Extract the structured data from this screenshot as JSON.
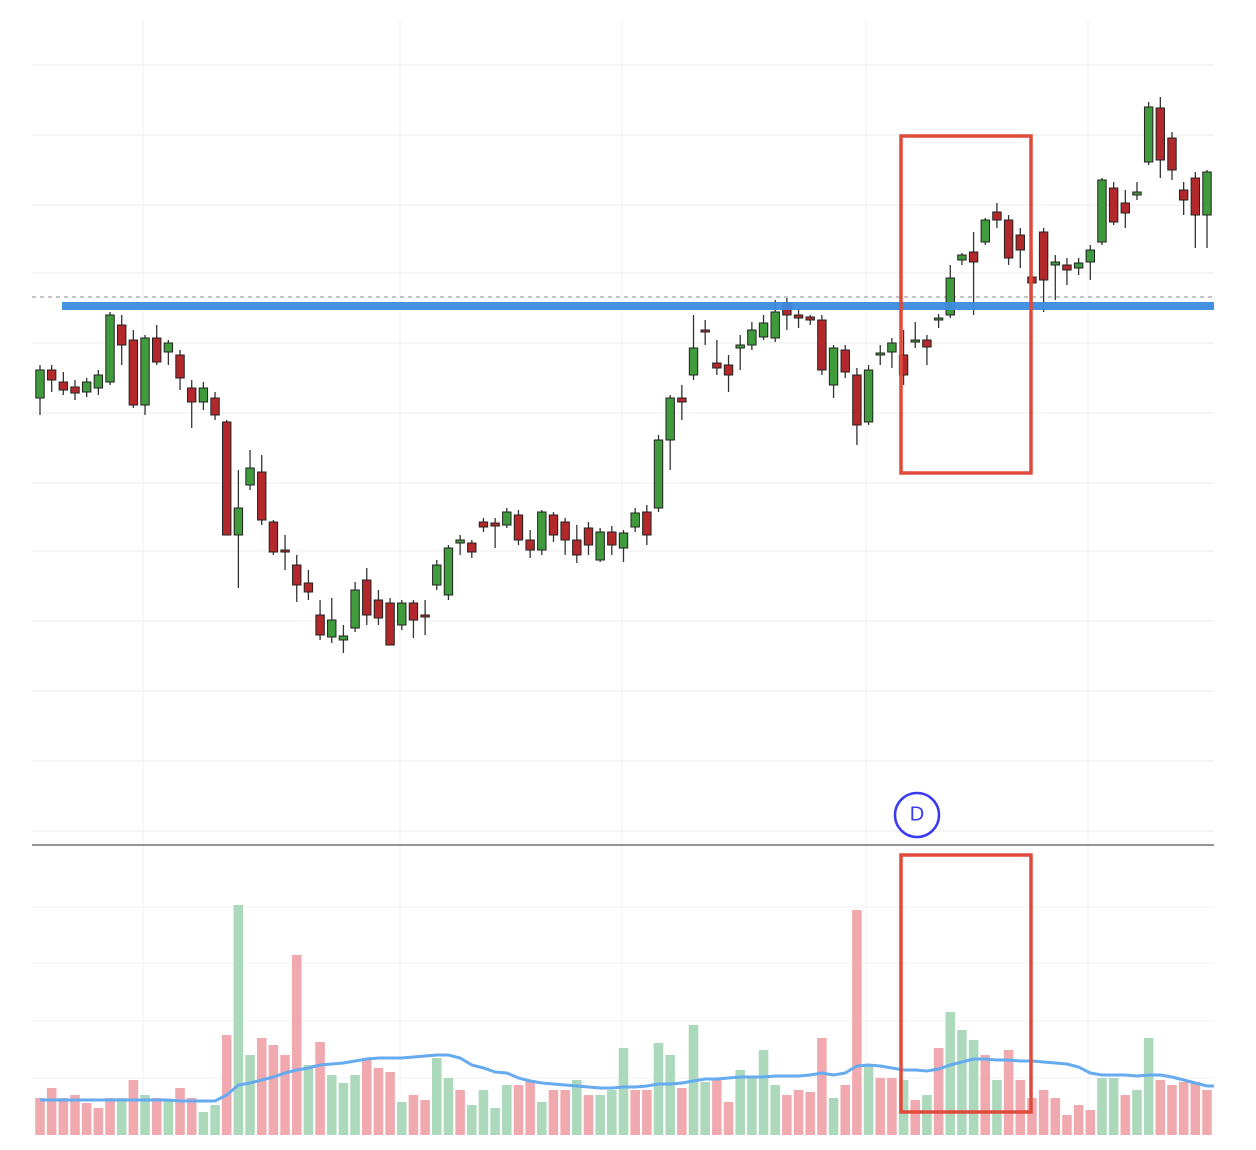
{
  "chart_data": [
    {
      "type": "candlestick",
      "open": [
        602,
        630,
        618,
        613,
        608,
        612,
        618,
        675,
        660,
        595,
        662,
        648,
        645,
        612,
        598,
        602,
        578,
        465,
        515,
        528,
        478,
        450,
        435,
        417,
        385,
        363,
        360,
        372,
        420,
        400,
        397,
        375,
        397,
        385,
        415,
        405,
        457,
        457,
        478,
        477,
        475,
        485,
        460,
        450,
        485,
        478,
        460,
        472,
        440,
        468,
        452,
        473,
        488,
        492,
        560,
        602,
        625,
        670,
        637,
        635,
        652,
        655,
        663,
        662,
        697,
        685,
        683,
        680,
        615,
        650,
        625,
        578,
        645,
        648,
        645,
        658,
        660,
        680,
        685,
        740,
        748,
        758,
        788,
        780,
        765,
        723,
        768,
        735,
        735,
        732,
        738,
        758,
        812,
        797,
        805,
        838,
        892,
        862,
        810,
        822,
        785
      ],
      "high": [
        635,
        635,
        628,
        620,
        622,
        630,
        688,
        685,
        670,
        665,
        675,
        660,
        650,
        620,
        618,
        608,
        580,
        530,
        550,
        545,
        480,
        465,
        445,
        430,
        400,
        402,
        375,
        418,
        432,
        410,
        402,
        400,
        400,
        400,
        440,
        455,
        465,
        460,
        482,
        482,
        492,
        490,
        470,
        490,
        488,
        482,
        475,
        478,
        472,
        474,
        470,
        492,
        495,
        565,
        605,
        615,
        685,
        680,
        660,
        645,
        665,
        678,
        685,
        700,
        702,
        690,
        685,
        685,
        655,
        655,
        632,
        635,
        655,
        662,
        670,
        678,
        665,
        686,
        735,
        747,
        768,
        782,
        797,
        785,
        772,
        750,
        772,
        745,
        742,
        742,
        755,
        822,
        818,
        810,
        818,
        898,
        903,
        868,
        818,
        828,
        830
      ],
      "low": [
        585,
        608,
        605,
        600,
        603,
        605,
        615,
        635,
        592,
        585,
        635,
        635,
        610,
        572,
        590,
        580,
        465,
        412,
        510,
        475,
        445,
        430,
        398,
        400,
        360,
        357,
        347,
        368,
        375,
        375,
        355,
        370,
        362,
        365,
        410,
        400,
        445,
        442,
        468,
        452,
        472,
        455,
        442,
        445,
        458,
        445,
        437,
        445,
        438,
        445,
        438,
        468,
        455,
        488,
        530,
        580,
        620,
        655,
        625,
        608,
        630,
        650,
        660,
        658,
        670,
        672,
        675,
        625,
        602,
        622,
        555,
        575,
        635,
        632,
        615,
        652,
        635,
        672,
        682,
        735,
        685,
        755,
        772,
        735,
        732,
        700,
        688,
        700,
        715,
        725,
        720,
        755,
        775,
        772,
        800,
        835,
        822,
        820,
        785,
        752,
        752
      ],
      "close": [
        630,
        620,
        610,
        607,
        618,
        625,
        685,
        655,
        595,
        662,
        638,
        657,
        622,
        598,
        612,
        585,
        465,
        492,
        532,
        480,
        448,
        448,
        415,
        408,
        365,
        380,
        364,
        410,
        385,
        382,
        355,
        397,
        380,
        383,
        435,
        452,
        460,
        448,
        473,
        474,
        488,
        460,
        450,
        488,
        465,
        460,
        445,
        455,
        468,
        455,
        467,
        487,
        465,
        560,
        602,
        598,
        652,
        668,
        632,
        625,
        655,
        670,
        677,
        688,
        685,
        682,
        680,
        630,
        652,
        628,
        575,
        630,
        647,
        657,
        625,
        660,
        653,
        682,
        722,
        745,
        738,
        780,
        780,
        742,
        750,
        717,
        720,
        738,
        730,
        737,
        750,
        820,
        778,
        787,
        808,
        893,
        840,
        830,
        800,
        785,
        828
      ],
      "up_color": "#3f9b3c",
      "down_color": "#b3282b",
      "ylim": [
        160,
        985
      ],
      "yticks": [
        169,
        239,
        309,
        379,
        449,
        517,
        587,
        657,
        727,
        795,
        865,
        935
      ],
      "grid": true,
      "resistance": 694,
      "resistance_color": "#3d8be0",
      "reference_line": 703,
      "marker": "D",
      "marker_color": "#3b3bf0"
    },
    {
      "type": "bar",
      "values": [
        37,
        47,
        37,
        40,
        32,
        27,
        37,
        37,
        55,
        40,
        37,
        35,
        47,
        37,
        23,
        30,
        100,
        230,
        80,
        97,
        90,
        80,
        180,
        70,
        93,
        60,
        52,
        60,
        77,
        67,
        63,
        33,
        40,
        35,
        77,
        57,
        45,
        30,
        45,
        27,
        50,
        50,
        55,
        33,
        45,
        45,
        55,
        40,
        40,
        45,
        87,
        45,
        45,
        92,
        80,
        47,
        110,
        53,
        55,
        33,
        65,
        57,
        85,
        50,
        40,
        45,
        43,
        97,
        37,
        50,
        225,
        70,
        57,
        57,
        55,
        35,
        40,
        87,
        123,
        105,
        95,
        80,
        55,
        85,
        55,
        37,
        45,
        37,
        20,
        30,
        25,
        57,
        57,
        40,
        45,
        97,
        55,
        50,
        53,
        53,
        45
      ],
      "colors": [
        "#f0a9ae",
        "#f0a9ae",
        "#f0a9ae",
        "#f0a9ae",
        "#f0a9ae",
        "#f0a9ae",
        "#f0a9ae",
        "#acd9bb",
        "#f0a9ae",
        "#acd9bb",
        "#f0a9ae",
        "#acd9bb",
        "#f0a9ae",
        "#f0a9ae",
        "#acd9bb",
        "#acd9bb",
        "#f0a9ae",
        "#acd9bb",
        "#acd9bb",
        "#f0a9ae",
        "#f0a9ae",
        "#f0a9ae",
        "#f0a9ae",
        "#acd9bb",
        "#f0a9ae",
        "#acd9bb",
        "#acd9bb",
        "#acd9bb",
        "#f0a9ae",
        "#f0a9ae",
        "#f0a9ae",
        "#acd9bb",
        "#f0a9ae",
        "#f0a9ae",
        "#acd9bb",
        "#acd9bb",
        "#f0a9ae",
        "#acd9bb",
        "#acd9bb",
        "#acd9bb",
        "#acd9bb",
        "#f0a9ae",
        "#f0a9ae",
        "#acd9bb",
        "#f0a9ae",
        "#f0a9ae",
        "#acd9bb",
        "#f0a9ae",
        "#acd9bb",
        "#acd9bb",
        "#acd9bb",
        "#f0a9ae",
        "#f0a9ae",
        "#acd9bb",
        "#acd9bb",
        "#f0a9ae",
        "#acd9bb",
        "#acd9bb",
        "#f0a9ae",
        "#f0a9ae",
        "#acd9bb",
        "#acd9bb",
        "#acd9bb",
        "#acd9bb",
        "#f0a9ae",
        "#f0a9ae",
        "#f0a9ae",
        "#f0a9ae",
        "#acd9bb",
        "#f0a9ae",
        "#f0a9ae",
        "#acd9bb",
        "#f0a9ae",
        "#f0a9ae",
        "#acd9bb",
        "#f0a9ae",
        "#acd9bb",
        "#f0a9ae",
        "#acd9bb",
        "#acd9bb",
        "#acd9bb",
        "#f0a9ae",
        "#acd9bb",
        "#f0a9ae",
        "#f0a9ae",
        "#f0a9ae",
        "#f0a9ae",
        "#f0a9ae",
        "#f0a9ae",
        "#f0a9ae",
        "#f0a9ae",
        "#acd9bb",
        "#acd9bb",
        "#f0a9ae",
        "#acd9bb",
        "#acd9bb",
        "#f0a9ae",
        "#f0a9ae",
        "#f0a9ae",
        "#f0a9ae",
        "#f0a9ae"
      ],
      "moving_average": [
        35,
        35,
        35,
        35,
        35,
        35,
        35,
        35,
        35,
        35,
        35,
        35,
        34,
        34,
        34,
        34,
        40,
        50,
        52,
        55,
        58,
        62,
        65,
        67,
        70,
        71,
        72,
        74,
        76,
        77,
        77,
        77,
        78,
        79,
        80,
        80,
        77,
        70,
        67,
        63,
        62,
        57,
        54,
        52,
        51,
        50,
        49,
        48,
        47,
        47,
        48,
        48,
        49,
        51,
        51,
        52,
        54,
        56,
        56,
        57,
        58,
        58,
        58,
        59,
        59,
        59,
        60,
        62,
        60,
        62,
        69,
        70,
        69,
        67,
        65,
        65,
        64,
        66,
        70,
        73,
        76,
        76,
        75,
        75,
        74,
        74,
        73,
        72,
        71,
        68,
        62,
        60,
        60,
        60,
        59,
        60,
        60,
        58,
        55,
        52,
        49
      ],
      "ma_color": "#66aaf0",
      "ylim": [
        0,
        290
      ],
      "yticks": [
        57,
        114,
        172,
        228
      ],
      "grid": true
    }
  ]
}
